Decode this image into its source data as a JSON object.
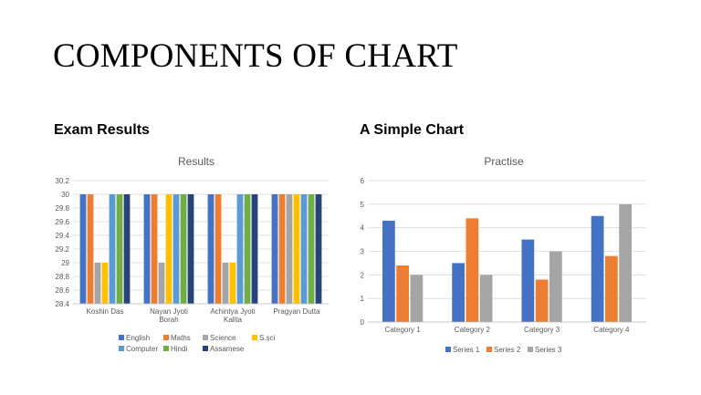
{
  "slide": {
    "title": "COMPONENTS OF CHART",
    "left_heading": "Exam Results",
    "right_heading": "A Simple Chart"
  },
  "chart_data": [
    {
      "type": "bar",
      "title": "Results",
      "categories": [
        [
          "Koshin Das"
        ],
        [
          "Nayan Jyoti",
          "Borah"
        ],
        [
          "Achintya Jyoti",
          "Kalita"
        ],
        [
          "Pragyan Dutta"
        ]
      ],
      "ylim": [
        28.4,
        30.2
      ],
      "yticks": [
        "30.2",
        "30",
        "29.8",
        "29.6",
        "29.4",
        "29.2",
        "29",
        "28.8",
        "28.6",
        "28.4"
      ],
      "grid": true,
      "legend_position": "bottom",
      "series": [
        {
          "name": "English",
          "color": "#4472c4",
          "values": [
            30,
            30,
            30,
            30
          ]
        },
        {
          "name": "Maths",
          "color": "#ed7d31",
          "values": [
            30,
            30,
            30,
            30
          ]
        },
        {
          "name": "Science",
          "color": "#a5a5a5",
          "values": [
            29,
            29,
            29,
            30
          ]
        },
        {
          "name": "S.sci",
          "color": "#ffc000",
          "values": [
            29,
            30,
            29,
            30
          ]
        },
        {
          "name": "Computer",
          "color": "#5b9bd5",
          "values": [
            30,
            30,
            30,
            30
          ]
        },
        {
          "name": "Hindi",
          "color": "#70ad47",
          "values": [
            30,
            30,
            30,
            30
          ]
        },
        {
          "name": "Assamese",
          "color": "#264478",
          "values": [
            30,
            30,
            30,
            30
          ]
        }
      ]
    },
    {
      "type": "bar",
      "title": "Practise",
      "categories": [
        [
          "Category 1"
        ],
        [
          "Category 2"
        ],
        [
          "Category 3"
        ],
        [
          "Category 4"
        ]
      ],
      "ylim": [
        0,
        6
      ],
      "yticks": [
        "6",
        "5",
        "4",
        "3",
        "2",
        "1",
        "0"
      ],
      "grid": true,
      "legend_position": "bottom",
      "series": [
        {
          "name": "Series 1",
          "color": "#4472c4",
          "values": [
            4.3,
            2.5,
            3.5,
            4.5
          ]
        },
        {
          "name": "Series 2",
          "color": "#ed7d31",
          "values": [
            2.4,
            4.4,
            1.8,
            2.8
          ]
        },
        {
          "name": "Series 3",
          "color": "#a5a5a5",
          "values": [
            2,
            2,
            3,
            5
          ]
        }
      ]
    }
  ]
}
